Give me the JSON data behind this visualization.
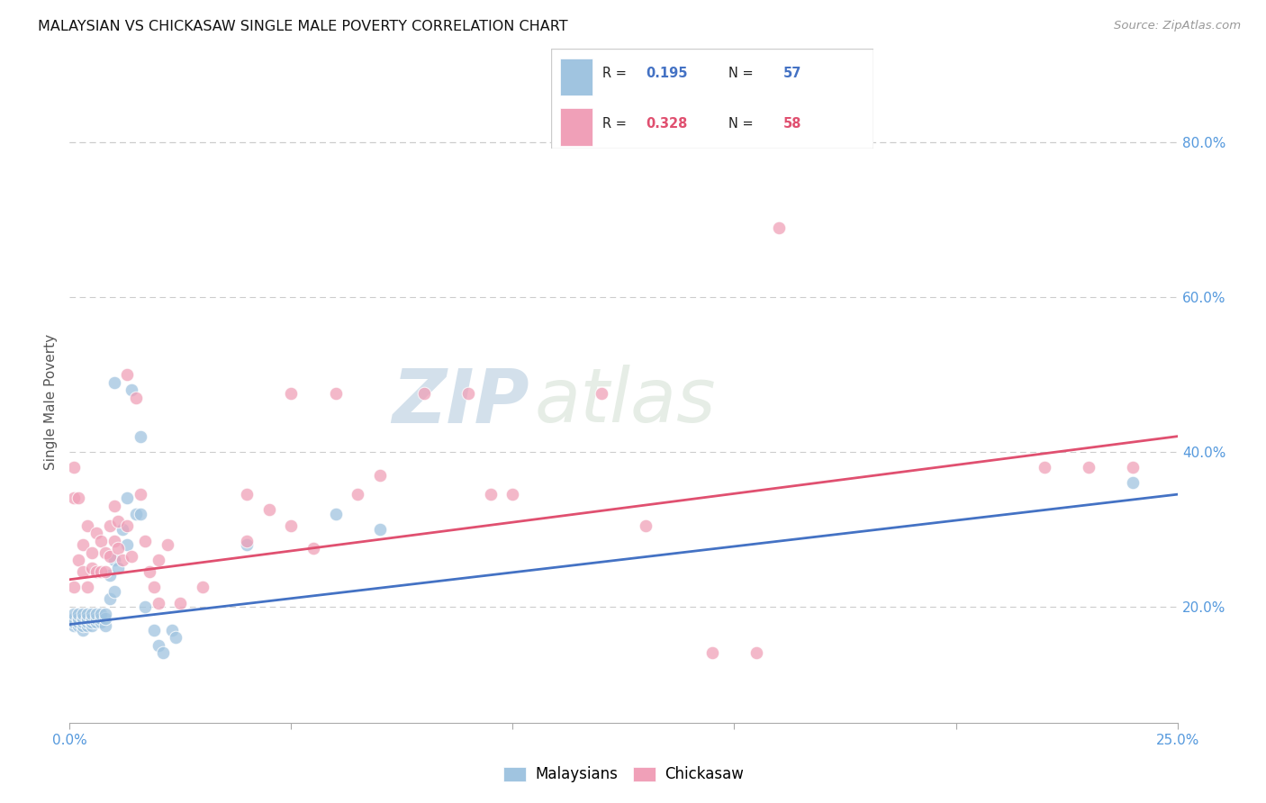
{
  "title": "MALAYSIAN VS CHICKASAW SINGLE MALE POVERTY CORRELATION CHART",
  "source": "Source: ZipAtlas.com",
  "ylabel": "Single Male Poverty",
  "ytick_labels": [
    "20.0%",
    "40.0%",
    "60.0%",
    "80.0%"
  ],
  "ytick_values": [
    0.2,
    0.4,
    0.6,
    0.8
  ],
  "blue_color": "#a0c4e0",
  "pink_color": "#f0a0b8",
  "blue_line_color": "#4472C4",
  "pink_line_color": "#E05070",
  "watermark_zip": "ZIP",
  "watermark_atlas": "atlas",
  "xlim": [
    0.0,
    0.25
  ],
  "ylim": [
    0.05,
    0.88
  ],
  "xtick_positions": [
    0.0,
    0.05,
    0.1,
    0.15,
    0.2,
    0.25
  ],
  "blue_scatter_x": [
    0.001,
    0.001,
    0.001,
    0.001,
    0.002,
    0.002,
    0.002,
    0.002,
    0.002,
    0.003,
    0.003,
    0.003,
    0.003,
    0.003,
    0.003,
    0.004,
    0.004,
    0.004,
    0.004,
    0.004,
    0.005,
    0.005,
    0.005,
    0.005,
    0.005,
    0.006,
    0.006,
    0.006,
    0.007,
    0.007,
    0.007,
    0.008,
    0.008,
    0.008,
    0.009,
    0.009,
    0.01,
    0.01,
    0.01,
    0.011,
    0.012,
    0.013,
    0.013,
    0.014,
    0.015,
    0.016,
    0.016,
    0.017,
    0.019,
    0.02,
    0.021,
    0.023,
    0.024,
    0.04,
    0.06,
    0.07,
    0.24
  ],
  "blue_scatter_y": [
    0.175,
    0.18,
    0.185,
    0.19,
    0.175,
    0.18,
    0.185,
    0.185,
    0.19,
    0.17,
    0.175,
    0.18,
    0.185,
    0.185,
    0.19,
    0.175,
    0.18,
    0.185,
    0.185,
    0.19,
    0.175,
    0.18,
    0.185,
    0.185,
    0.19,
    0.18,
    0.185,
    0.19,
    0.18,
    0.185,
    0.19,
    0.175,
    0.185,
    0.19,
    0.21,
    0.24,
    0.22,
    0.26,
    0.49,
    0.25,
    0.3,
    0.34,
    0.28,
    0.48,
    0.32,
    0.32,
    0.42,
    0.2,
    0.17,
    0.15,
    0.14,
    0.17,
    0.16,
    0.28,
    0.32,
    0.3,
    0.36
  ],
  "pink_scatter_x": [
    0.001,
    0.001,
    0.001,
    0.002,
    0.002,
    0.003,
    0.003,
    0.004,
    0.004,
    0.005,
    0.005,
    0.006,
    0.006,
    0.007,
    0.007,
    0.008,
    0.008,
    0.009,
    0.009,
    0.01,
    0.01,
    0.011,
    0.011,
    0.012,
    0.013,
    0.013,
    0.014,
    0.015,
    0.016,
    0.017,
    0.018,
    0.019,
    0.02,
    0.02,
    0.022,
    0.025,
    0.03,
    0.04,
    0.04,
    0.045,
    0.05,
    0.055,
    0.065,
    0.07,
    0.08,
    0.09,
    0.095,
    0.1,
    0.12,
    0.13,
    0.145,
    0.155,
    0.16,
    0.22,
    0.23,
    0.24,
    0.05,
    0.06
  ],
  "pink_scatter_y": [
    0.225,
    0.34,
    0.38,
    0.26,
    0.34,
    0.245,
    0.28,
    0.225,
    0.305,
    0.25,
    0.27,
    0.295,
    0.245,
    0.285,
    0.245,
    0.27,
    0.245,
    0.265,
    0.305,
    0.285,
    0.33,
    0.275,
    0.31,
    0.26,
    0.5,
    0.305,
    0.265,
    0.47,
    0.345,
    0.285,
    0.245,
    0.225,
    0.205,
    0.26,
    0.28,
    0.205,
    0.225,
    0.345,
    0.285,
    0.325,
    0.305,
    0.275,
    0.345,
    0.37,
    0.475,
    0.475,
    0.345,
    0.345,
    0.475,
    0.305,
    0.14,
    0.14,
    0.69,
    0.38,
    0.38,
    0.38,
    0.475,
    0.475
  ]
}
